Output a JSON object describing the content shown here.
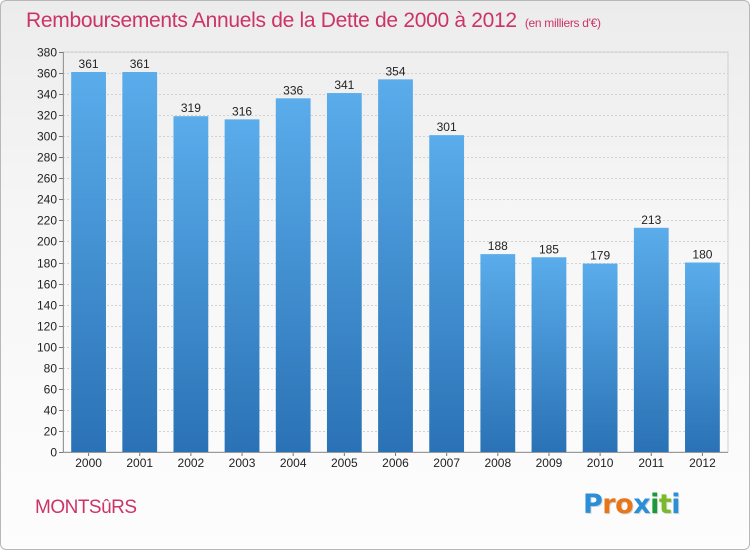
{
  "title": {
    "main": "Remboursements Annuels de la Dette de 2000 à 2012",
    "unit": "(en milliers d'€)"
  },
  "commune": "MONTSûRS",
  "logo": {
    "text": "Proxiti",
    "letter_colors": [
      "#2a8fd6",
      "#e8751a",
      "#e8751a",
      "#2a8fd6",
      "#1a9a3a",
      "#7ab929",
      "#2a8fd6"
    ]
  },
  "colors": {
    "bar_top": "#5aaceb",
    "bar_bottom": "#2a72b5",
    "title": "#cc3366",
    "grid": "#d2d2d2"
  },
  "chart_data": {
    "type": "bar",
    "title": "Remboursements Annuels de la Dette de 2000 à 2012",
    "subtitle": "(en milliers d'€)",
    "categories": [
      "2000",
      "2001",
      "2002",
      "2003",
      "2004",
      "2005",
      "2006",
      "2007",
      "2008",
      "2009",
      "2010",
      "2011",
      "2012"
    ],
    "values": [
      361,
      361,
      319,
      316,
      336,
      341,
      354,
      301,
      188,
      185,
      179,
      213,
      180
    ],
    "ylim": [
      0,
      380
    ],
    "ytick_step": 20,
    "grid": true,
    "xlabel": "",
    "ylabel": ""
  }
}
